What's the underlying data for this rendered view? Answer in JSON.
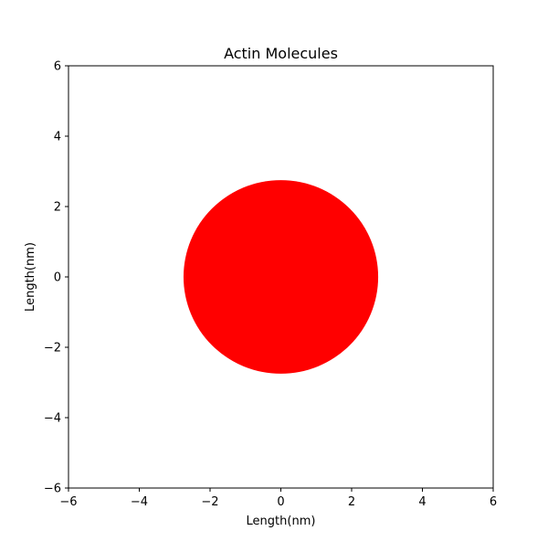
{
  "chart_data": {
    "type": "scatter",
    "title": "Actin Molecules",
    "xlabel": "Length(nm)",
    "ylabel": "Length(nm)",
    "xlim": [
      -6,
      6
    ],
    "ylim": [
      -6,
      6
    ],
    "xticks": [
      -6,
      -4,
      -2,
      0,
      2,
      4,
      6
    ],
    "yticks": [
      -6,
      -4,
      -2,
      0,
      2,
      4,
      6
    ],
    "xtick_labels": [
      "−6",
      "−4",
      "−2",
      "0",
      "2",
      "4",
      "6"
    ],
    "ytick_labels": [
      "−6",
      "−4",
      "−2",
      "0",
      "2",
      "4",
      "6"
    ],
    "grid": false,
    "legend": "none",
    "shapes": [
      {
        "kind": "circle",
        "center": [
          0,
          0
        ],
        "radius": 2.75,
        "color": "#ff0000"
      }
    ]
  }
}
